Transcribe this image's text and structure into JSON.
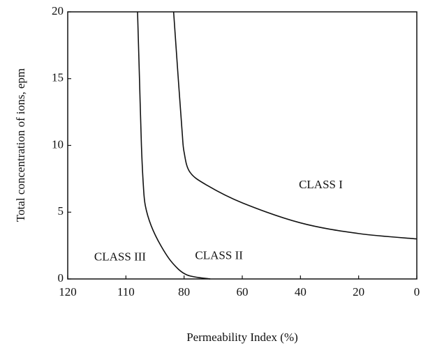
{
  "chart_data": {
    "type": "line",
    "x_label": "Permeability Index (%)",
    "y_label": "Total concentration of ions, epm",
    "xlim": [
      120,
      0
    ],
    "ylim": [
      0,
      20
    ],
    "xticks": [
      120,
      110,
      80,
      60,
      40,
      20,
      0
    ],
    "yticks": [
      0,
      5,
      10,
      15,
      20
    ],
    "series": [
      {
        "color": "#111111",
        "x": [
          104,
          103,
          102,
          101,
          100,
          97,
          92,
          86,
          79,
          71
        ],
        "values": [
          20,
          15,
          10,
          7,
          5.5,
          4,
          2.5,
          1.2,
          0.3,
          0
        ]
      },
      {
        "color": "#111111",
        "x": [
          85.4,
          83,
          81,
          80,
          78,
          72,
          60,
          40,
          20,
          0
        ],
        "values": [
          20,
          15,
          11,
          9.5,
          8,
          7,
          5.7,
          4.2,
          3.4,
          3
        ]
      }
    ],
    "annotations": [
      {
        "text": "CLASS I",
        "x": 33,
        "y": 7
      },
      {
        "text": "CLASS II",
        "x": 68,
        "y": 1.7
      },
      {
        "text": "CLASS III",
        "x": 111,
        "y": 1.6
      }
    ]
  }
}
